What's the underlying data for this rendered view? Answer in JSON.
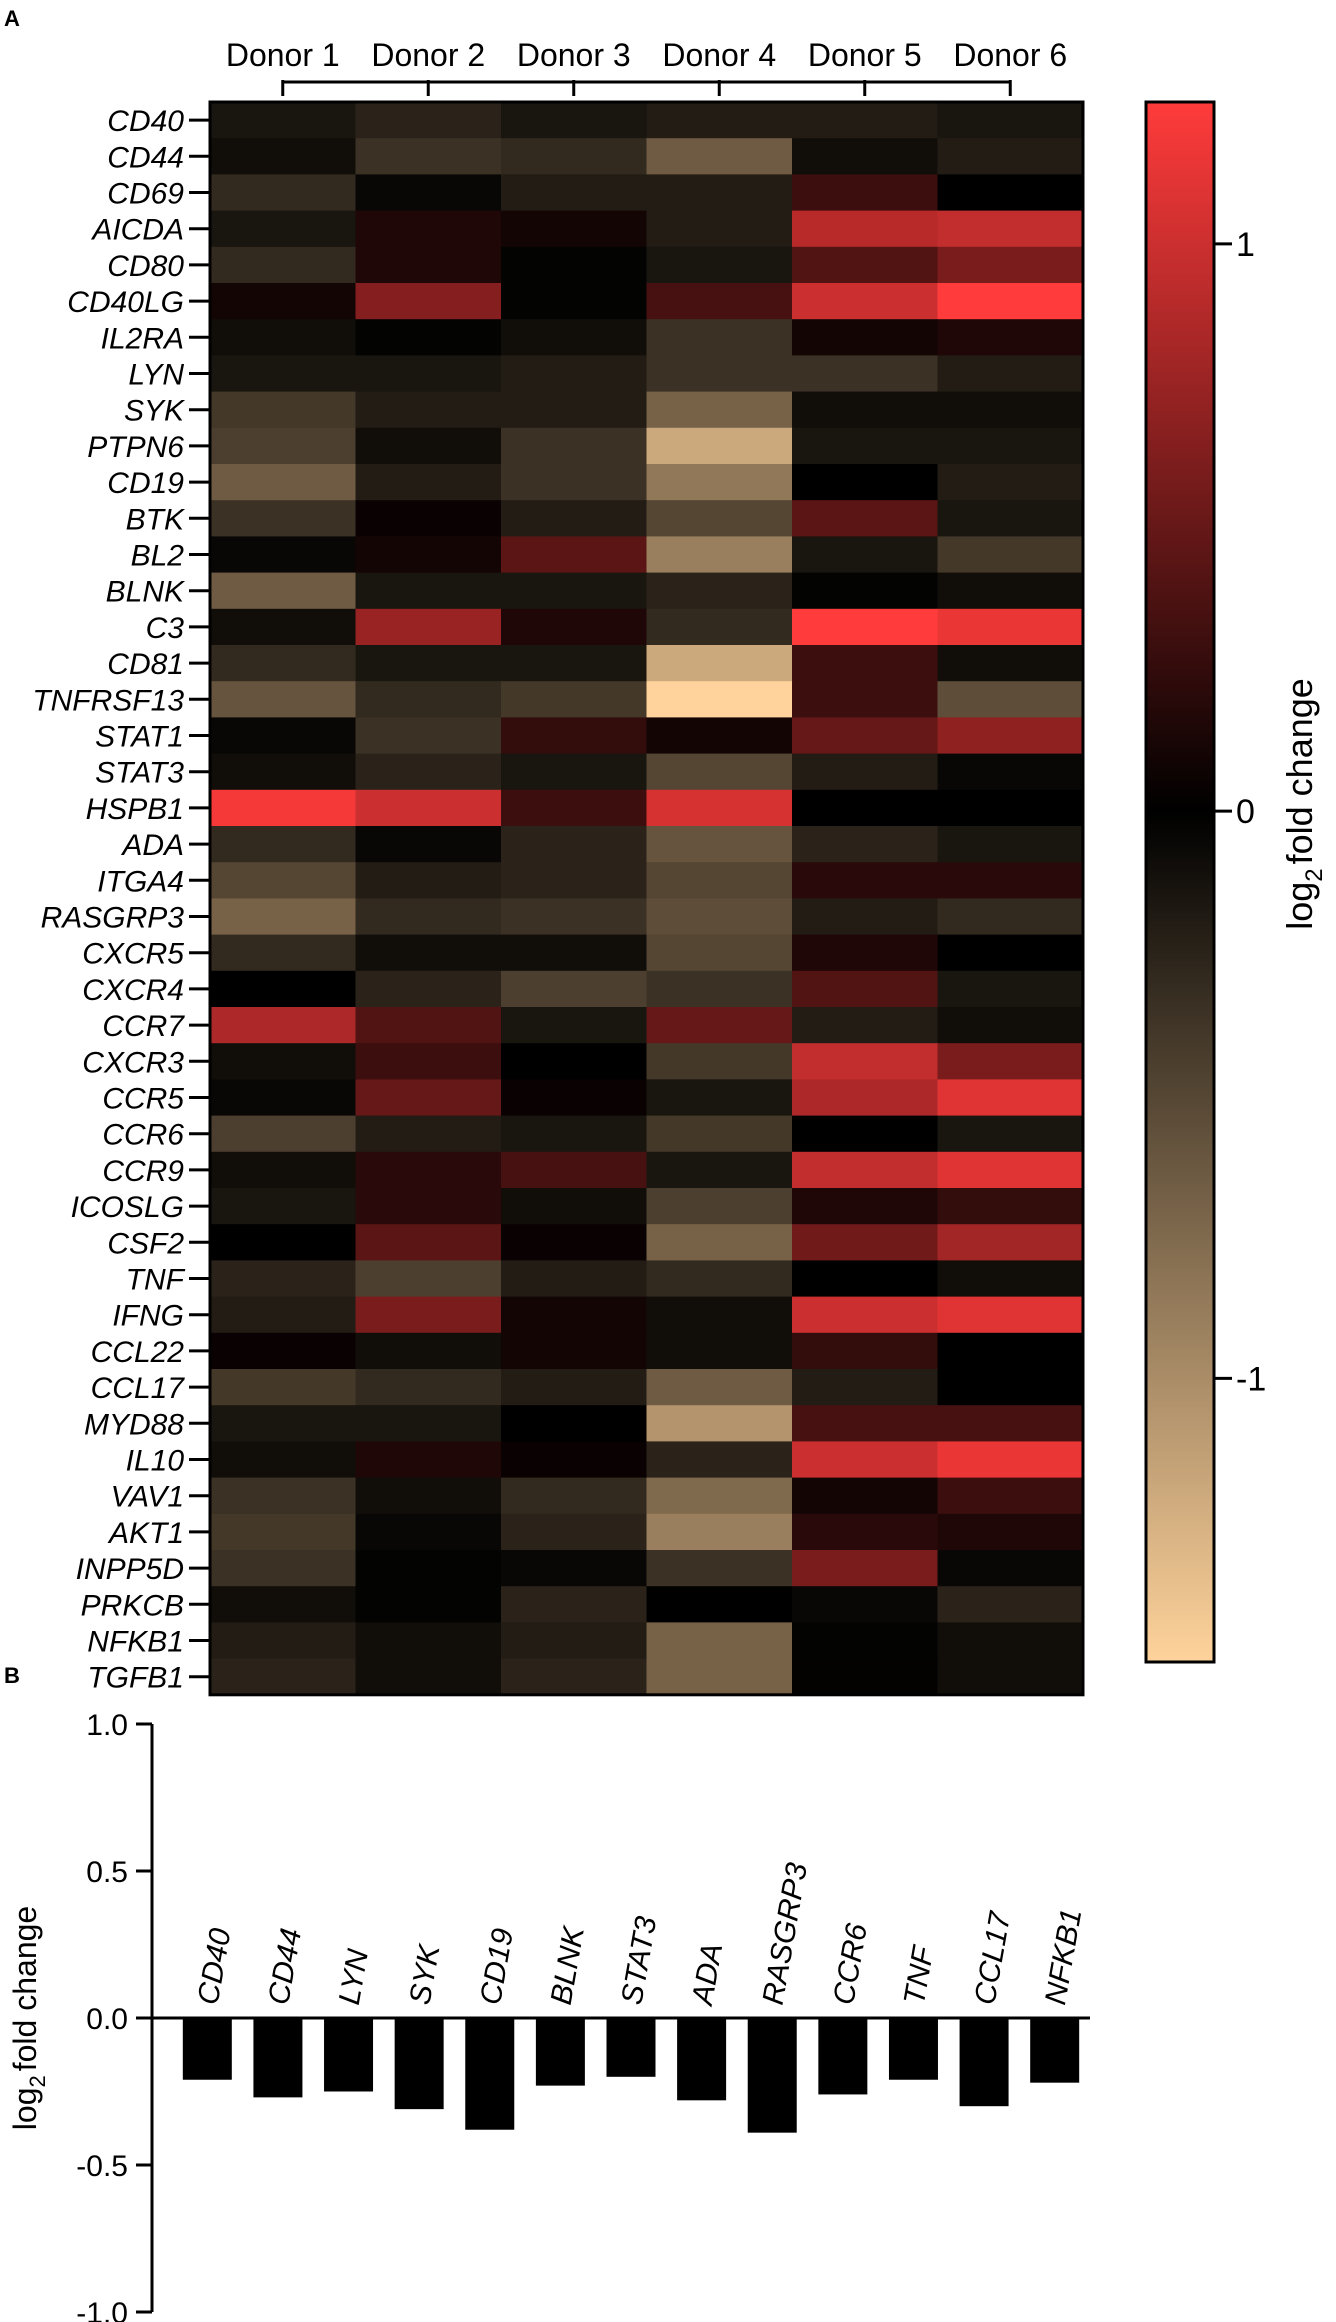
{
  "panel_labels": {
    "a": "A",
    "b": "B"
  },
  "chart_data": [
    {
      "type": "heatmap",
      "panel": "A",
      "columns": [
        "Donor 1",
        "Donor 2",
        "Donor 3",
        "Donor 4",
        "Donor 5",
        "Donor 6"
      ],
      "rows": [
        "CD40",
        "CD44",
        "CD69",
        "AICDA",
        "CD80",
        "CD40LG",
        "IL2RA",
        "LYN",
        "SYK",
        "PTPN6",
        "CD19",
        "BTK",
        "BL2",
        "BLNK",
        "C3",
        "CD81",
        "TNFRSF13",
        "STAT1",
        "STAT3",
        "HSPB1",
        "ADA",
        "ITGA4",
        "RASGRP3",
        "CXCR5",
        "CXCR4",
        "CCR7",
        "CXCR3",
        "CCR5",
        "CCR6",
        "CCR9",
        "ICOSLG",
        "CSF2",
        "TNF",
        "IFNG",
        "CCL22",
        "CCL17",
        "MYD88",
        "IL10",
        "VAV1",
        "AKT1",
        "INPP5D",
        "PRKCB",
        "NFKB1",
        "TGFB1"
      ],
      "values": [
        [
          -0.15,
          -0.25,
          -0.15,
          -0.2,
          -0.2,
          -0.15
        ],
        [
          -0.1,
          -0.35,
          -0.3,
          -0.65,
          -0.1,
          -0.2
        ],
        [
          -0.3,
          -0.05,
          -0.2,
          -0.2,
          0.3,
          0.0
        ],
        [
          -0.15,
          0.15,
          0.1,
          -0.2,
          0.9,
          0.95
        ],
        [
          -0.3,
          0.15,
          -0.02,
          -0.15,
          0.4,
          0.6
        ],
        [
          0.1,
          0.65,
          -0.02,
          0.35,
          1.0,
          1.25
        ],
        [
          -0.1,
          -0.02,
          -0.1,
          -0.35,
          0.1,
          0.15
        ],
        [
          -0.15,
          -0.15,
          -0.2,
          -0.35,
          -0.35,
          -0.2
        ],
        [
          -0.4,
          -0.2,
          -0.2,
          -0.7,
          -0.1,
          -0.1
        ],
        [
          -0.45,
          -0.1,
          -0.35,
          -1.2,
          -0.15,
          -0.15
        ],
        [
          -0.65,
          -0.2,
          -0.35,
          -0.85,
          0.0,
          -0.2
        ],
        [
          -0.35,
          0.05,
          -0.2,
          -0.5,
          0.45,
          -0.15
        ],
        [
          -0.05,
          0.1,
          0.45,
          -0.9,
          -0.15,
          -0.4
        ],
        [
          -0.65,
          -0.15,
          -0.15,
          -0.25,
          -0.02,
          -0.1
        ],
        [
          -0.1,
          0.75,
          0.15,
          -0.3,
          1.25,
          1.15
        ],
        [
          -0.3,
          -0.15,
          -0.15,
          -1.2,
          0.3,
          -0.1
        ],
        [
          -0.6,
          -0.3,
          -0.4,
          -1.5,
          0.3,
          -0.55
        ],
        [
          -0.05,
          -0.35,
          0.25,
          0.1,
          0.5,
          0.7
        ],
        [
          -0.1,
          -0.25,
          -0.15,
          -0.5,
          -0.2,
          -0.05
        ],
        [
          1.2,
          1.0,
          0.3,
          1.05,
          0.0,
          0.0
        ],
        [
          -0.3,
          -0.05,
          -0.25,
          -0.6,
          -0.25,
          -0.15
        ],
        [
          -0.5,
          -0.2,
          -0.25,
          -0.5,
          0.2,
          0.2
        ],
        [
          -0.7,
          -0.3,
          -0.35,
          -0.55,
          -0.2,
          -0.3
        ],
        [
          -0.3,
          -0.1,
          -0.1,
          -0.5,
          0.15,
          0.0
        ],
        [
          0.0,
          -0.25,
          -0.45,
          -0.35,
          0.4,
          -0.15
        ],
        [
          0.85,
          0.4,
          -0.15,
          0.5,
          -0.2,
          -0.1
        ],
        [
          -0.1,
          0.3,
          0.0,
          -0.4,
          0.95,
          0.6
        ],
        [
          -0.05,
          0.5,
          0.05,
          -0.15,
          0.85,
          1.1
        ],
        [
          -0.45,
          -0.2,
          -0.15,
          -0.4,
          0.0,
          -0.15
        ],
        [
          -0.1,
          0.2,
          0.35,
          -0.15,
          0.95,
          1.1
        ],
        [
          -0.15,
          0.2,
          -0.1,
          -0.45,
          0.15,
          0.25
        ],
        [
          0.0,
          0.45,
          0.05,
          -0.7,
          0.55,
          0.8
        ],
        [
          -0.25,
          -0.45,
          -0.2,
          -0.3,
          0.0,
          -0.1
        ],
        [
          -0.2,
          0.6,
          0.1,
          -0.1,
          1.0,
          1.1
        ],
        [
          0.05,
          -0.1,
          0.1,
          -0.1,
          0.25,
          0.0
        ],
        [
          -0.4,
          -0.3,
          -0.2,
          -0.65,
          -0.2,
          0.0
        ],
        [
          -0.15,
          -0.15,
          0.0,
          -1.05,
          0.35,
          0.35
        ],
        [
          -0.1,
          0.15,
          0.05,
          -0.25,
          1.0,
          1.15
        ],
        [
          -0.35,
          -0.1,
          -0.3,
          -0.75,
          0.1,
          0.3
        ],
        [
          -0.4,
          -0.05,
          -0.25,
          -0.9,
          0.2,
          0.15
        ],
        [
          -0.35,
          -0.02,
          -0.05,
          -0.35,
          0.6,
          -0.05
        ],
        [
          -0.1,
          -0.02,
          -0.25,
          0.0,
          -0.05,
          -0.25
        ],
        [
          -0.2,
          -0.1,
          -0.2,
          -0.7,
          -0.02,
          -0.1
        ],
        [
          -0.25,
          -0.1,
          -0.25,
          -0.7,
          0.02,
          -0.1
        ]
      ],
      "colorbar": {
        "label_main": "log",
        "label_sub": "2",
        "label_rest": "fold change",
        "ticks": [
          1,
          0,
          -1
        ],
        "tick_labels": [
          "1",
          "0",
          "-1"
        ],
        "range": [
          -1.5,
          1.25
        ],
        "color_low": "#ffd39b",
        "color_mid": "#000000",
        "color_high": "#ff3b3b"
      }
    },
    {
      "type": "bar",
      "panel": "B",
      "categories": [
        "CD40",
        "CD44",
        "LYN",
        "SYK",
        "CD19",
        "BLNK",
        "STAT3",
        "ADA",
        "RASGRP3",
        "CCR6",
        "TNF",
        "CCL17",
        "NFKB1"
      ],
      "values": [
        -0.21,
        -0.27,
        -0.25,
        -0.31,
        -0.38,
        -0.23,
        -0.2,
        -0.28,
        -0.39,
        -0.26,
        -0.21,
        -0.3,
        -0.22
      ],
      "ylabel_main": "log",
      "ylabel_sub": "2",
      "ylabel_rest": "fold change",
      "ylim": [
        -1.0,
        1.0
      ],
      "yticks": [
        1.0,
        0.5,
        0.0,
        -0.5,
        -1.0
      ],
      "ytick_labels": [
        "1.0",
        "0.5",
        "0.0",
        "-0.5",
        "-1.0"
      ],
      "bar_color": "#000000"
    }
  ]
}
